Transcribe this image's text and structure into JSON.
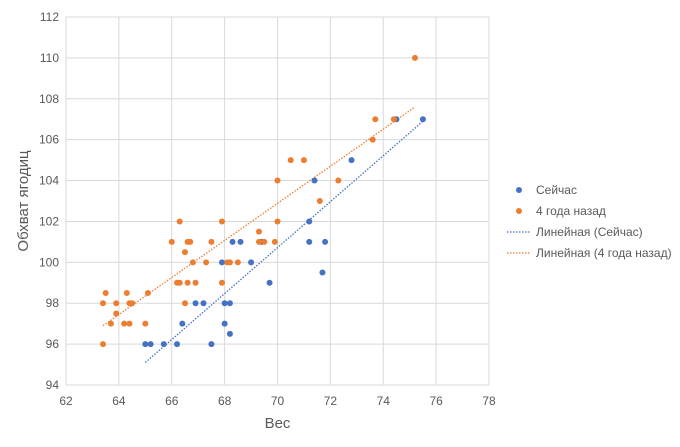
{
  "chart_data": {
    "type": "scatter",
    "xlabel": "Вес",
    "ylabel": "Обхват ягодиц",
    "xlim": [
      62,
      78
    ],
    "ylim": [
      94,
      112
    ],
    "xticks": [
      62,
      64,
      66,
      68,
      70,
      72,
      74,
      76,
      78
    ],
    "yticks": [
      94,
      96,
      98,
      100,
      102,
      104,
      106,
      108,
      110,
      112
    ],
    "grid": true,
    "legend_position": "right",
    "series": [
      {
        "name": "Сейчас",
        "color": "#4472C4",
        "points": [
          [
            65,
            96
          ],
          [
            65.2,
            96
          ],
          [
            65.7,
            96
          ],
          [
            66.2,
            96
          ],
          [
            66.4,
            97
          ],
          [
            66.9,
            98
          ],
          [
            67.2,
            98
          ],
          [
            67.5,
            96
          ],
          [
            67.9,
            100
          ],
          [
            68,
            97
          ],
          [
            68,
            98
          ],
          [
            68.2,
            98
          ],
          [
            68.2,
            96.5
          ],
          [
            68.3,
            101
          ],
          [
            68.6,
            101
          ],
          [
            69,
            100
          ],
          [
            69.4,
            101
          ],
          [
            69.7,
            99
          ],
          [
            71.2,
            101
          ],
          [
            71.2,
            102
          ],
          [
            71.4,
            104
          ],
          [
            71.7,
            99.5
          ],
          [
            71.8,
            101
          ],
          [
            72.8,
            105
          ],
          [
            74.5,
            107
          ],
          [
            75.5,
            107
          ]
        ]
      },
      {
        "name": "4 года назад",
        "color": "#ED7D31",
        "points": [
          [
            63.4,
            96
          ],
          [
            63.4,
            98
          ],
          [
            63.5,
            98.5
          ],
          [
            63.7,
            97
          ],
          [
            63.9,
            98
          ],
          [
            63.9,
            97.5
          ],
          [
            64.2,
            97
          ],
          [
            64.3,
            98.5
          ],
          [
            64.4,
            98
          ],
          [
            64.4,
            97
          ],
          [
            64.5,
            98
          ],
          [
            65,
            97
          ],
          [
            65.1,
            98.5
          ],
          [
            66,
            101
          ],
          [
            66.2,
            99
          ],
          [
            66.3,
            102
          ],
          [
            66.3,
            99
          ],
          [
            66.5,
            100.5
          ],
          [
            66.5,
            98
          ],
          [
            66.6,
            101
          ],
          [
            66.6,
            99
          ],
          [
            66.7,
            101
          ],
          [
            66.8,
            100
          ],
          [
            66.9,
            99
          ],
          [
            67.3,
            100
          ],
          [
            67.5,
            101
          ],
          [
            67.9,
            102
          ],
          [
            67.9,
            99
          ],
          [
            68.1,
            100
          ],
          [
            68.2,
            100
          ],
          [
            68.5,
            100
          ],
          [
            69.3,
            101.5
          ],
          [
            69.3,
            101
          ],
          [
            69.5,
            101
          ],
          [
            69.9,
            101
          ],
          [
            70,
            102
          ],
          [
            70,
            104
          ],
          [
            70.5,
            105
          ],
          [
            71,
            105
          ],
          [
            71.6,
            103
          ],
          [
            72.3,
            104
          ],
          [
            73.6,
            106
          ],
          [
            73.7,
            107
          ],
          [
            74.4,
            107
          ],
          [
            75.2,
            110
          ]
        ]
      }
    ],
    "trendlines": [
      {
        "name": "Линейная (Сейчас)",
        "color": "#4472C4",
        "from": [
          65,
          95.1
        ],
        "to": [
          75.5,
          106.9
        ]
      },
      {
        "name": "Линейная (4 года назад)",
        "color": "#ED7D31",
        "from": [
          63.4,
          96.9
        ],
        "to": [
          75.2,
          107.6
        ]
      }
    ]
  }
}
